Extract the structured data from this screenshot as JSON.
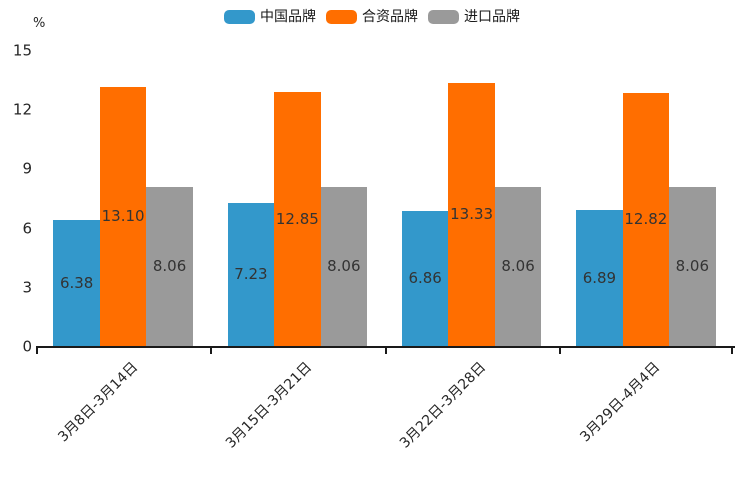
{
  "chart_data": {
    "type": "bar",
    "title": "",
    "unit_label": "%",
    "categories": [
      "3月8日-3月14日",
      "3月15日-3月21日",
      "3月22日-3月28日",
      "3月29日-4月4日"
    ],
    "series": [
      {
        "name": "中国品牌",
        "color": "#3398CB",
        "values": [
          6.38,
          7.23,
          6.86,
          6.89
        ]
      },
      {
        "name": "合资品牌",
        "color": "#FF6E00",
        "values": [
          13.1,
          12.85,
          13.33,
          12.82
        ]
      },
      {
        "name": "进口品牌",
        "color": "#9A9A9A",
        "values": [
          8.06,
          8.06,
          8.06,
          8.06
        ]
      }
    ],
    "ylim": [
      0,
      15
    ],
    "yticks": [
      0,
      3,
      6,
      9,
      12,
      15
    ],
    "value_label_decimals": 2,
    "bar_value_labels_visible": true,
    "grid": false,
    "legend_position": "top-center",
    "axis_color": "#1a1a1a",
    "tick_label_color": "#262626",
    "value_label_color": "#333333"
  }
}
